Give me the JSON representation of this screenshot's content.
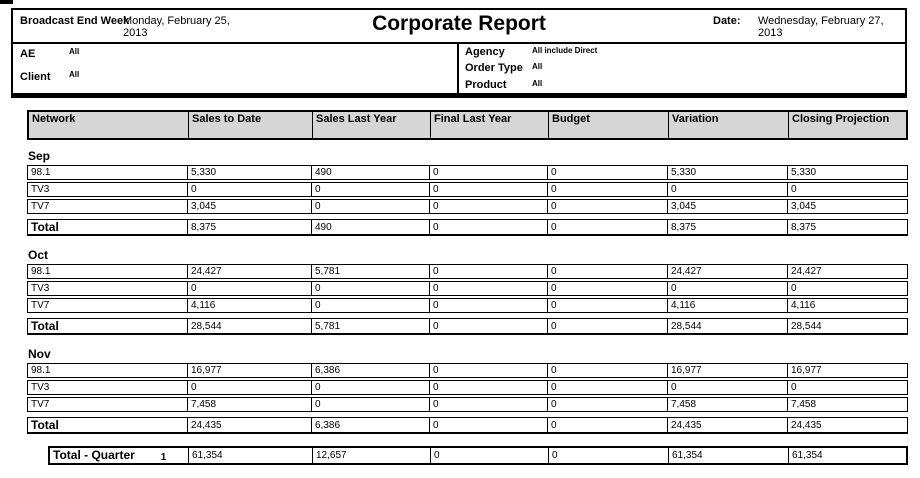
{
  "page": {
    "title": "Corporate Report"
  },
  "header": {
    "broadcast_end_week_label": "Broadcast End Week",
    "broadcast_end_week_value": "Monday, February 25, 2013",
    "date_label": "Date:",
    "date_value": "Wednesday, February 27, 2013",
    "filters_left": [
      {
        "label": "AE",
        "value": "All"
      },
      {
        "label": "Client",
        "value": "All"
      }
    ],
    "filters_right": [
      {
        "label": "Agency",
        "value": "All include Direct"
      },
      {
        "label": "Order Type",
        "value": "All"
      },
      {
        "label": "Product",
        "value": "All"
      }
    ]
  },
  "table": {
    "columns": [
      "Network",
      "Sales to Date",
      "Sales Last Year",
      "Final Last Year",
      "Budget",
      "Variation",
      "Closing Projection"
    ],
    "sections": [
      {
        "month": "Sep",
        "rows": [
          {
            "network": "98.1",
            "values": [
              "5,330",
              "490",
              "0",
              "0",
              "5,330",
              "5,330"
            ]
          },
          {
            "network": "TV3",
            "values": [
              "0",
              "0",
              "0",
              "0",
              "0",
              "0"
            ]
          },
          {
            "network": "TV7",
            "values": [
              "3,045",
              "0",
              "0",
              "0",
              "3,045",
              "3,045"
            ]
          }
        ],
        "total": {
          "label": "Total",
          "values": [
            "8,375",
            "490",
            "0",
            "0",
            "8,375",
            "8,375"
          ]
        }
      },
      {
        "month": "Oct",
        "rows": [
          {
            "network": "98.1",
            "values": [
              "24,427",
              "5,781",
              "0",
              "0",
              "24,427",
              "24,427"
            ]
          },
          {
            "network": "TV3",
            "values": [
              "0",
              "0",
              "0",
              "0",
              "0",
              "0"
            ]
          },
          {
            "network": "TV7",
            "values": [
              "4,116",
              "0",
              "0",
              "0",
              "4,116",
              "4,116"
            ]
          }
        ],
        "total": {
          "label": "Total",
          "values": [
            "28,544",
            "5,781",
            "0",
            "0",
            "28,544",
            "28,544"
          ]
        }
      },
      {
        "month": "Nov",
        "rows": [
          {
            "network": "98.1",
            "values": [
              "16,977",
              "6,386",
              "0",
              "0",
              "16,977",
              "16,977"
            ]
          },
          {
            "network": "TV3",
            "values": [
              "0",
              "0",
              "0",
              "0",
              "0",
              "0"
            ]
          },
          {
            "network": "TV7",
            "values": [
              "7,458",
              "0",
              "0",
              "0",
              "7,458",
              "7,458"
            ]
          }
        ],
        "total": {
          "label": "Total",
          "values": [
            "24,435",
            "6,386",
            "0",
            "0",
            "24,435",
            "24,435"
          ]
        }
      }
    ],
    "quarter_total": {
      "label": "Total - Quarter",
      "quarter_number": "1",
      "values": [
        "61,354",
        "12,657",
        "0",
        "0",
        "61,354",
        "61,354"
      ]
    }
  },
  "colors": {
    "header_row_bg": "#d6d6d6",
    "border": "#000000",
    "background": "#ffffff"
  }
}
